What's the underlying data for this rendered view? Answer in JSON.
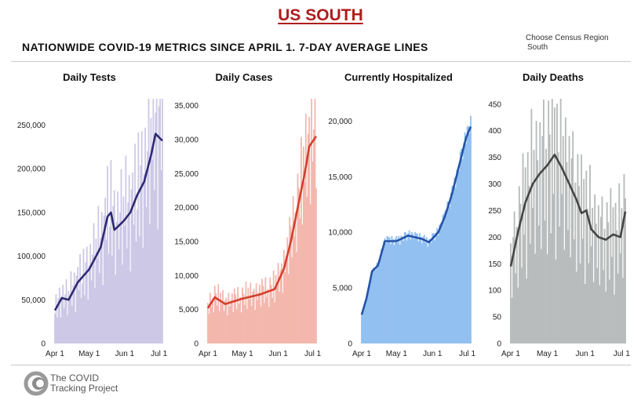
{
  "header": {
    "region_title": "US SOUTH",
    "main_title": "NATIONWIDE COVID-19 METRICS SINCE APRIL 1. 7-DAY AVERAGE LINES",
    "picker_label": "Choose Census Region",
    "picker_value": "South"
  },
  "footer": {
    "line1": "The COVID",
    "line2": "Tracking Project",
    "logo_icon": "covid-tracking-logo-icon"
  },
  "chart_data": [
    {
      "type": "bar",
      "title": "Daily Tests",
      "bar_color": "#cdc8e6",
      "line_color": "#2e2a72",
      "ylim": [
        0,
        280000
      ],
      "yticks": [
        0,
        50000,
        100000,
        150000,
        200000,
        250000
      ],
      "ytick_labels": [
        "0",
        "50,000",
        "100,000",
        "150,000",
        "200,000",
        "250,000"
      ],
      "xticks": [
        0,
        30,
        61,
        91
      ],
      "xtick_labels": [
        "Apr 1",
        "May 1",
        "Jun 1",
        "Jul 1"
      ],
      "avg_keypoints": [
        [
          0,
          38000
        ],
        [
          6,
          52000
        ],
        [
          12,
          50000
        ],
        [
          20,
          70000
        ],
        [
          30,
          85000
        ],
        [
          40,
          110000
        ],
        [
          46,
          145000
        ],
        [
          49,
          150000
        ],
        [
          52,
          130000
        ],
        [
          60,
          140000
        ],
        [
          66,
          150000
        ],
        [
          72,
          170000
        ],
        [
          78,
          185000
        ],
        [
          84,
          215000
        ],
        [
          88,
          240000
        ],
        [
          94,
          232000
        ]
      ],
      "bar_dev": [
        -0.1,
        0.4,
        -0.3,
        0.15,
        0.35,
        -0.4,
        0.05,
        0.3,
        -0.2,
        0.1,
        0.45,
        -0.35,
        0.2,
        -0.05,
        0.5,
        -0.25,
        0.1,
        0.3,
        -0.45,
        0.15,
        0.25,
        -0.15,
        0.4,
        -0.3
      ]
    },
    {
      "type": "bar",
      "title": "Daily Cases",
      "bar_color": "#f3b7ad",
      "line_color": "#d2402c",
      "ylim": [
        0,
        36000
      ],
      "yticks": [
        0,
        5000,
        10000,
        15000,
        20000,
        25000,
        30000,
        35000
      ],
      "ytick_labels": [
        "0",
        "5,000",
        "10,000",
        "15,000",
        "20,000",
        "25,000",
        "30,000",
        "35,000"
      ],
      "xticks": [
        0,
        30,
        61,
        91
      ],
      "xtick_labels": [
        "Apr 1",
        "May 1",
        "Jun 1",
        "Jul 1"
      ],
      "avg_keypoints": [
        [
          0,
          5200
        ],
        [
          6,
          6800
        ],
        [
          15,
          5800
        ],
        [
          30,
          6600
        ],
        [
          45,
          7200
        ],
        [
          58,
          8000
        ],
        [
          66,
          11000
        ],
        [
          72,
          15000
        ],
        [
          78,
          20000
        ],
        [
          84,
          25000
        ],
        [
          88,
          29000
        ],
        [
          94,
          30500
        ]
      ],
      "bar_dev": [
        0.15,
        -0.2,
        0.3,
        -0.1,
        0.05,
        -0.3,
        0.25,
        0.1,
        -0.15,
        0.35,
        -0.25,
        0.2,
        -0.05,
        0.3,
        -0.2,
        0.1,
        0.15,
        -0.3,
        0.25,
        -0.1,
        0.05,
        0.2,
        -0.25,
        0.3
      ]
    },
    {
      "type": "bar",
      "title": "Currently Hospitalized",
      "bar_color": "#92c0f0",
      "line_color": "#2553a8",
      "ylim": [
        0,
        22000
      ],
      "yticks": [
        0,
        5000,
        10000,
        15000,
        20000
      ],
      "ytick_labels": [
        "0",
        "5,000",
        "10,000",
        "15,000",
        "20,000"
      ],
      "xticks": [
        0,
        30,
        61,
        91
      ],
      "xtick_labels": [
        "Apr 1",
        "May 1",
        "Jun 1",
        "Jul 1"
      ],
      "avg_keypoints": [
        [
          0,
          2600
        ],
        [
          4,
          4000
        ],
        [
          9,
          6500
        ],
        [
          14,
          7000
        ],
        [
          20,
          9200
        ],
        [
          30,
          9200
        ],
        [
          40,
          9700
        ],
        [
          52,
          9400
        ],
        [
          58,
          9100
        ],
        [
          66,
          10000
        ],
        [
          72,
          11500
        ],
        [
          78,
          13500
        ],
        [
          84,
          16000
        ],
        [
          90,
          18500
        ],
        [
          94,
          19500
        ]
      ],
      "bar_dev": [
        0.04,
        -0.03,
        0.05,
        0.02,
        -0.04,
        0.03,
        0.05,
        -0.02,
        0.04,
        -0.05,
        0.03,
        0.02,
        -0.03,
        0.05,
        0.04,
        -0.04,
        0.02,
        0.05,
        -0.03,
        0.04,
        0.03,
        -0.02,
        0.05,
        0.04
      ]
    },
    {
      "type": "bar",
      "title": "Daily Deaths",
      "bar_color": "#b9bcbc",
      "line_color": "#454545",
      "ylim": [
        0,
        460
      ],
      "yticks": [
        0,
        50,
        100,
        150,
        200,
        250,
        300,
        350,
        400,
        450
      ],
      "ytick_labels": [
        "0",
        "50",
        "100",
        "150",
        "200",
        "250",
        "300",
        "350",
        "400",
        "450"
      ],
      "xticks": [
        0,
        30,
        61,
        91
      ],
      "xtick_labels": [
        "Apr 1",
        "May 1",
        "Jun 1",
        "Jul 1"
      ],
      "avg_keypoints": [
        [
          0,
          145
        ],
        [
          6,
          210
        ],
        [
          12,
          265
        ],
        [
          18,
          300
        ],
        [
          24,
          320
        ],
        [
          30,
          335
        ],
        [
          36,
          355
        ],
        [
          42,
          330
        ],
        [
          48,
          300
        ],
        [
          54,
          270
        ],
        [
          58,
          245
        ],
        [
          62,
          250
        ],
        [
          66,
          215
        ],
        [
          72,
          200
        ],
        [
          78,
          195
        ],
        [
          84,
          205
        ],
        [
          90,
          200
        ],
        [
          94,
          248
        ]
      ],
      "bar_dev": [
        0.3,
        -0.45,
        0.2,
        0.4,
        -0.3,
        0.1,
        -0.5,
        0.35,
        0.15,
        -0.4,
        0.45,
        -0.2,
        0.25,
        -0.55,
        0.3,
        0.05,
        -0.35,
        0.5,
        -0.15,
        0.2,
        -0.45,
        0.35,
        0.1,
        -0.3
      ]
    }
  ]
}
